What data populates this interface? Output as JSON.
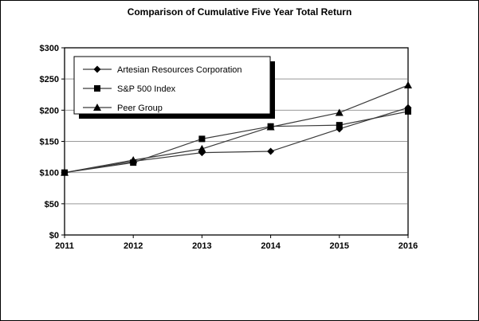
{
  "chart": {
    "title": "Comparison of Cumulative Five Year Total Return"
  },
  "chart_data": {
    "type": "line",
    "title": "Comparison of Cumulative Five Year Total Return",
    "categories": [
      "2011",
      "2012",
      "2013",
      "2014",
      "2015",
      "2016"
    ],
    "series": [
      {
        "name": "Artesian Resources Corporation",
        "marker": "diamond",
        "values": [
          100,
          118,
          132,
          134,
          170,
          204
        ]
      },
      {
        "name": "S&P 500 Index",
        "marker": "square",
        "values": [
          100,
          116,
          154,
          174,
          176,
          198
        ]
      },
      {
        "name": "Peer Group",
        "marker": "triangle",
        "values": [
          100,
          120,
          138,
          173,
          196,
          240
        ]
      }
    ],
    "xlabel": "",
    "ylabel": "",
    "ylim": [
      0,
      300
    ],
    "y_tick_step": 50,
    "y_tick_labels": [
      "$0",
      "$50",
      "$100",
      "$150",
      "$200",
      "$250",
      "$300"
    ],
    "grid": true,
    "legend_position": "top-left-inside",
    "colors": {
      "line": "#3a3a3a",
      "marker": "#000000",
      "gridline": "#999999",
      "axis": "#000000",
      "legend_shadow": "#000000",
      "background": "#ffffff"
    }
  }
}
